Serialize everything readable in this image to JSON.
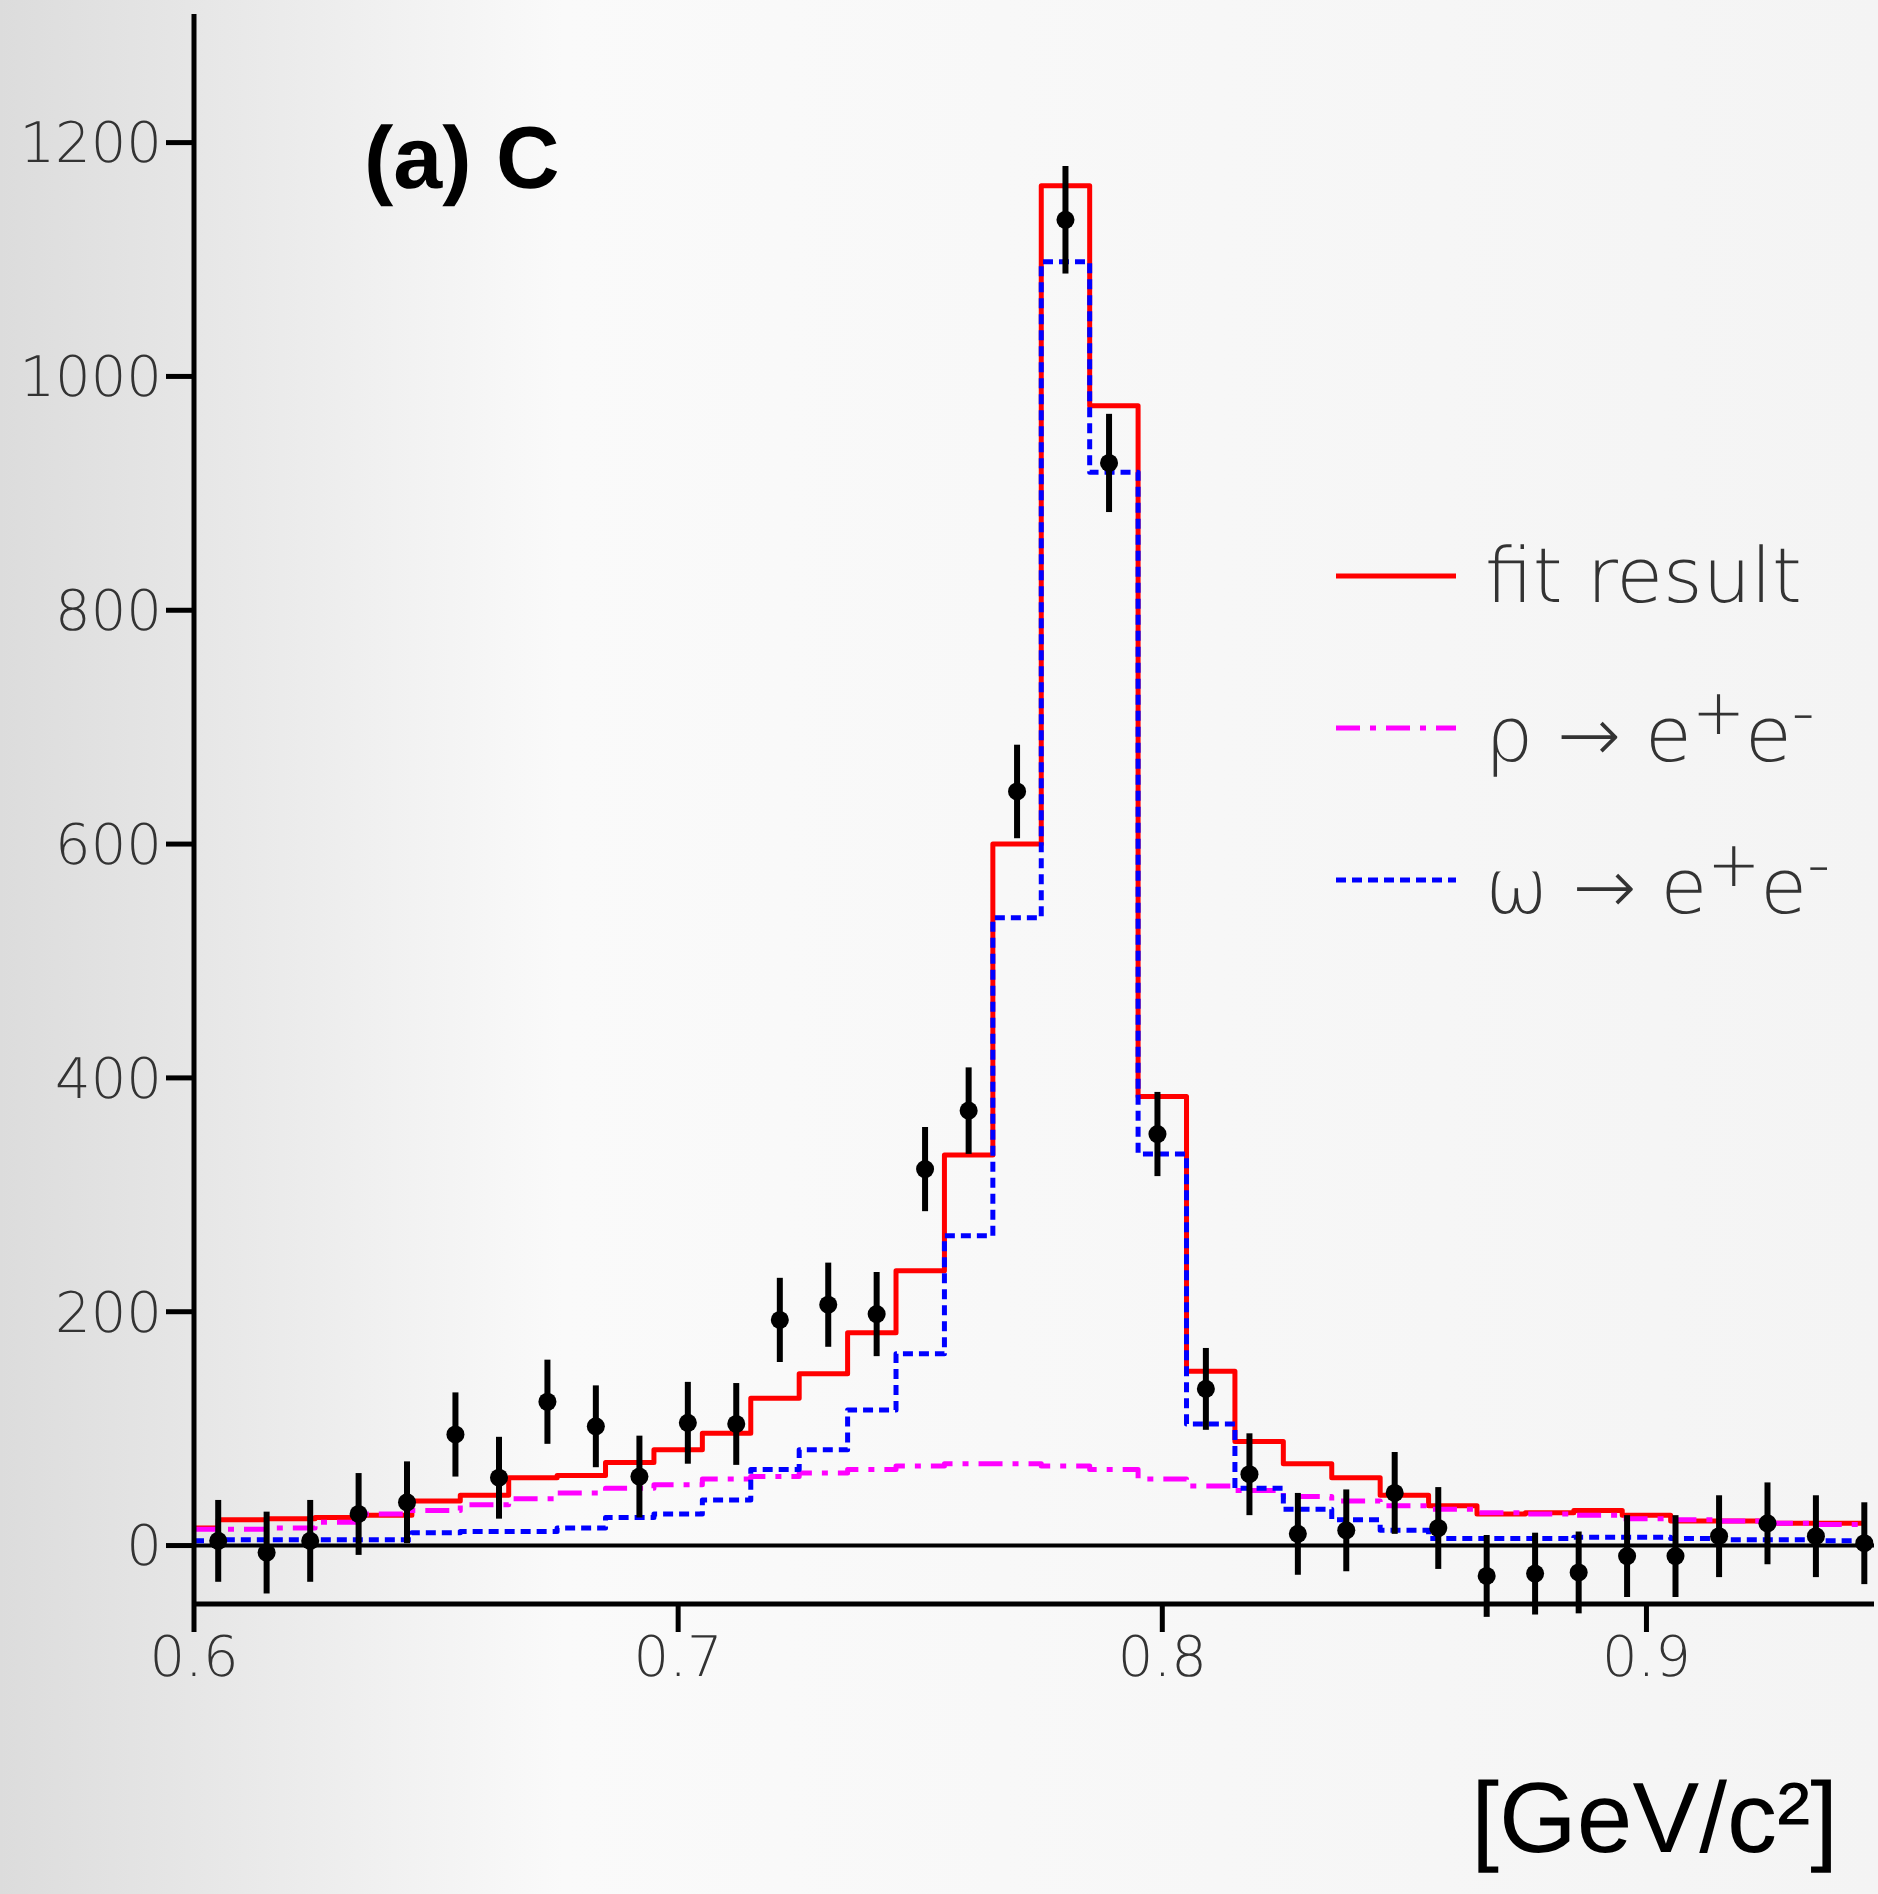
{
  "chart_data": {
    "type": "step",
    "xlabel": "[GeV/c²]",
    "annotations": [
      "(a) C"
    ],
    "xlim": [
      0.6,
      0.947
    ],
    "ylim": [
      -50,
      1310
    ],
    "xticks": [
      0.6,
      0.7,
      0.8,
      0.9
    ],
    "yticks": [
      0,
      200,
      400,
      600,
      800,
      1000,
      1200
    ],
    "legend": "top right",
    "ref_lines": [
      {
        "axis": "y",
        "value": 0,
        "color": "#000000"
      }
    ],
    "series": [
      {
        "name": "fit result",
        "color": "#ff0000",
        "line_style": "solid",
        "marker": "none",
        "x": [
          0.6,
          0.605,
          0.615,
          0.625,
          0.635,
          0.645,
          0.655,
          0.665,
          0.675,
          0.685,
          0.695,
          0.705,
          0.715,
          0.725,
          0.735,
          0.745,
          0.755,
          0.765,
          0.775,
          0.785,
          0.795,
          0.805,
          0.815,
          0.825,
          0.835,
          0.845,
          0.855,
          0.865,
          0.875,
          0.885,
          0.895,
          0.905,
          0.915,
          0.925,
          0.935,
          0.945
        ],
        "values": [
          15,
          22,
          23,
          24,
          26,
          38,
          43,
          58,
          60,
          71,
          82,
          96,
          126,
          147,
          182,
          235,
          334,
          600,
          1163,
          975,
          384,
          149,
          89,
          70,
          58,
          43,
          34,
          27,
          28,
          30,
          26,
          21,
          21,
          19,
          19,
          19
        ]
      },
      {
        "name": "ρ → e$^{+}$e$^{-}$",
        "color": "#ff00ff",
        "line_style": "dashed",
        "marker": "none",
        "x": [
          0.6,
          0.605,
          0.615,
          0.625,
          0.635,
          0.645,
          0.655,
          0.665,
          0.675,
          0.685,
          0.695,
          0.705,
          0.715,
          0.725,
          0.735,
          0.745,
          0.755,
          0.765,
          0.775,
          0.785,
          0.795,
          0.805,
          0.815,
          0.825,
          0.835,
          0.845,
          0.855,
          0.865,
          0.875,
          0.885,
          0.895,
          0.905,
          0.915,
          0.925,
          0.935,
          0.945
        ],
        "values": [
          14,
          14,
          15,
          20,
          27,
          30,
          35,
          40,
          45,
          49,
          52,
          57,
          59,
          62,
          65,
          68,
          70,
          70,
          68,
          65,
          57,
          51,
          47,
          42,
          38,
          34,
          31,
          28,
          27,
          26,
          23,
          22,
          21,
          19,
          18,
          18
        ]
      },
      {
        "name": "ω → e$^{+}$e$^{-}$",
        "color": "#0000ff",
        "line_style": "dotted",
        "marker": "none",
        "x": [
          0.6,
          0.605,
          0.615,
          0.625,
          0.635,
          0.645,
          0.655,
          0.665,
          0.675,
          0.685,
          0.695,
          0.705,
          0.715,
          0.725,
          0.735,
          0.745,
          0.755,
          0.765,
          0.775,
          0.785,
          0.795,
          0.805,
          0.815,
          0.825,
          0.835,
          0.845,
          0.855,
          0.865,
          0.875,
          0.885,
          0.895,
          0.905,
          0.915,
          0.925,
          0.935,
          0.945
        ],
        "values": [
          4,
          5,
          5,
          5,
          5,
          11,
          12,
          12,
          15,
          24,
          27,
          39,
          65,
          82,
          116,
          164,
          265,
          537,
          1098,
          918,
          335,
          104,
          49,
          31,
          22,
          13,
          6,
          6,
          6,
          7,
          7,
          6,
          5,
          5,
          4,
          4
        ]
      },
      {
        "type": "scatter",
        "color": "#000000",
        "marker": "circle",
        "x": [
          0.605,
          0.615,
          0.624,
          0.634,
          0.644,
          0.654,
          0.663,
          0.673,
          0.683,
          0.692,
          0.702,
          0.712,
          0.721,
          0.731,
          0.741,
          0.751,
          0.76,
          0.77,
          0.78,
          0.789,
          0.799,
          0.809,
          0.818,
          0.828,
          0.838,
          0.848,
          0.857,
          0.867,
          0.877,
          0.886,
          0.896,
          0.906,
          0.915,
          0.925,
          0.935,
          0.945
        ],
        "values": [
          4,
          -6,
          4,
          27,
          37,
          95,
          58,
          123,
          102,
          59,
          105,
          104,
          193,
          206,
          198,
          322,
          372,
          645,
          1134,
          926,
          352,
          134,
          61,
          10,
          13,
          45,
          15,
          -26,
          -24,
          -23,
          -9,
          -9,
          8,
          19,
          8,
          2
        ],
        "errors": [
          35,
          35,
          35,
          35,
          35,
          36,
          35,
          36,
          35,
          35,
          35,
          35,
          36,
          36,
          36,
          36,
          37,
          40,
          46,
          42,
          36,
          35,
          35,
          35,
          35,
          35,
          35,
          35,
          35,
          35,
          35,
          35,
          35,
          35,
          35,
          35
        ]
      }
    ]
  }
}
